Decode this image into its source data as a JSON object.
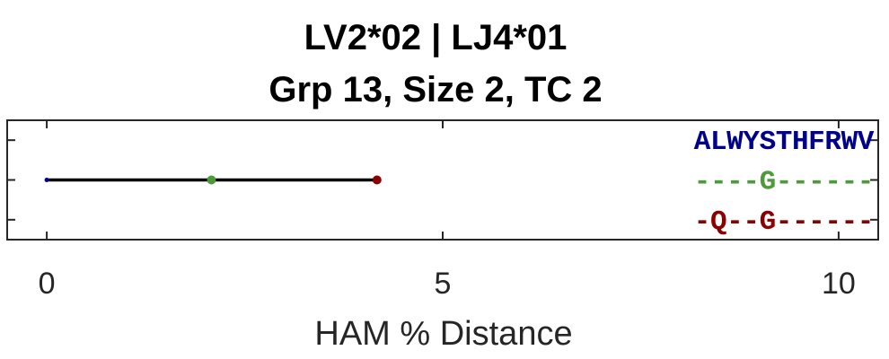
{
  "chart_data": {
    "type": "scatter",
    "title": "LV2*02 | LJ4*01",
    "subtitle": "Grp 13, Size 2, TC 2",
    "xlabel": "HAM % Distance",
    "ylabel": "",
    "xlim": [
      -0.5,
      10.5
    ],
    "xticks": [
      "0",
      "5",
      "10"
    ],
    "xtick_values": [
      0,
      5,
      10
    ],
    "ylim": [
      0.5,
      3.5
    ],
    "grid": false,
    "branch": {
      "from": 0,
      "to": 4.17,
      "color": "#000000"
    },
    "points": [
      {
        "x": 0,
        "color": "#00008B"
      },
      {
        "x": 2.08,
        "color": "#4E9A3A"
      },
      {
        "x": 4.17,
        "color": "#8B0000"
      }
    ],
    "sequences": [
      {
        "text": "ALWYSTHFRWV",
        "color": "#00008B"
      },
      {
        "text": "----G------",
        "color": "#4E9A3A"
      },
      {
        "text": "-Q--G------",
        "color": "#8B0000"
      }
    ]
  }
}
